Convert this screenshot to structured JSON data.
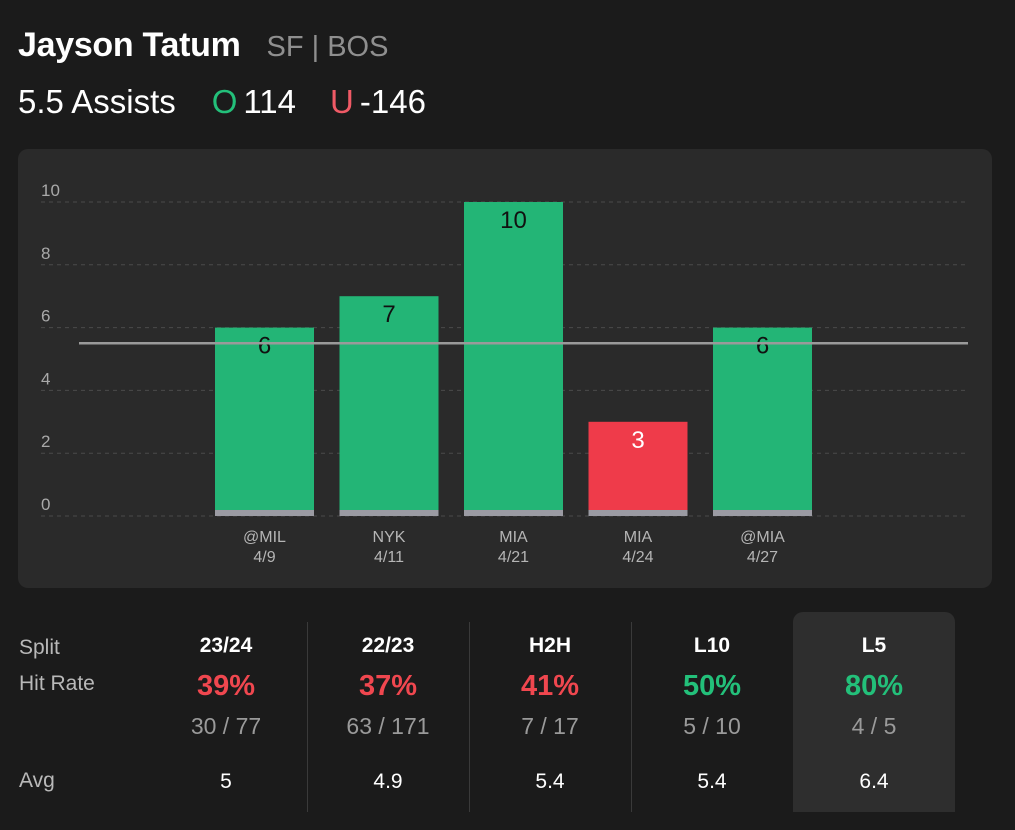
{
  "header": {
    "player_name": "Jayson Tatum",
    "meta": "SF | BOS",
    "line_label": "5.5 Assists",
    "over_letter": "O",
    "over_odds": "114",
    "under_letter": "U",
    "under_odds": "-146"
  },
  "colors": {
    "over": "#23b576",
    "under": "#ef3b4a",
    "base": "#9b9ba3",
    "line": "#9a9a9a"
  },
  "chart_data": {
    "type": "bar",
    "categories": [
      {
        "opp": "@MIL",
        "date": "4/9"
      },
      {
        "opp": "NYK",
        "date": "4/11"
      },
      {
        "opp": "MIA",
        "date": "4/21"
      },
      {
        "opp": "MIA",
        "date": "4/24"
      },
      {
        "opp": "@MIA",
        "date": "4/27"
      }
    ],
    "values": [
      6,
      7,
      10,
      3,
      6
    ],
    "threshold": 5.5,
    "ylim": [
      0,
      10
    ],
    "yticks": [
      0,
      2,
      4,
      6,
      8,
      10
    ],
    "title": "",
    "xlabel": "",
    "ylabel": ""
  },
  "stats": {
    "labels": {
      "split": "Split",
      "hit_rate": "Hit Rate",
      "avg": "Avg"
    },
    "columns": [
      {
        "name": "23/24",
        "pct": "39%",
        "frac": "30 / 77",
        "avg": "5",
        "tone": "red"
      },
      {
        "name": "22/23",
        "pct": "37%",
        "frac": "63 / 171",
        "avg": "4.9",
        "tone": "red"
      },
      {
        "name": "H2H",
        "pct": "41%",
        "frac": "7 / 17",
        "avg": "5.4",
        "tone": "red"
      },
      {
        "name": "L10",
        "pct": "50%",
        "frac": "5 / 10",
        "avg": "5.4",
        "tone": "green"
      },
      {
        "name": "L5",
        "pct": "80%",
        "frac": "4 / 5",
        "avg": "6.4",
        "tone": "green"
      }
    ]
  }
}
